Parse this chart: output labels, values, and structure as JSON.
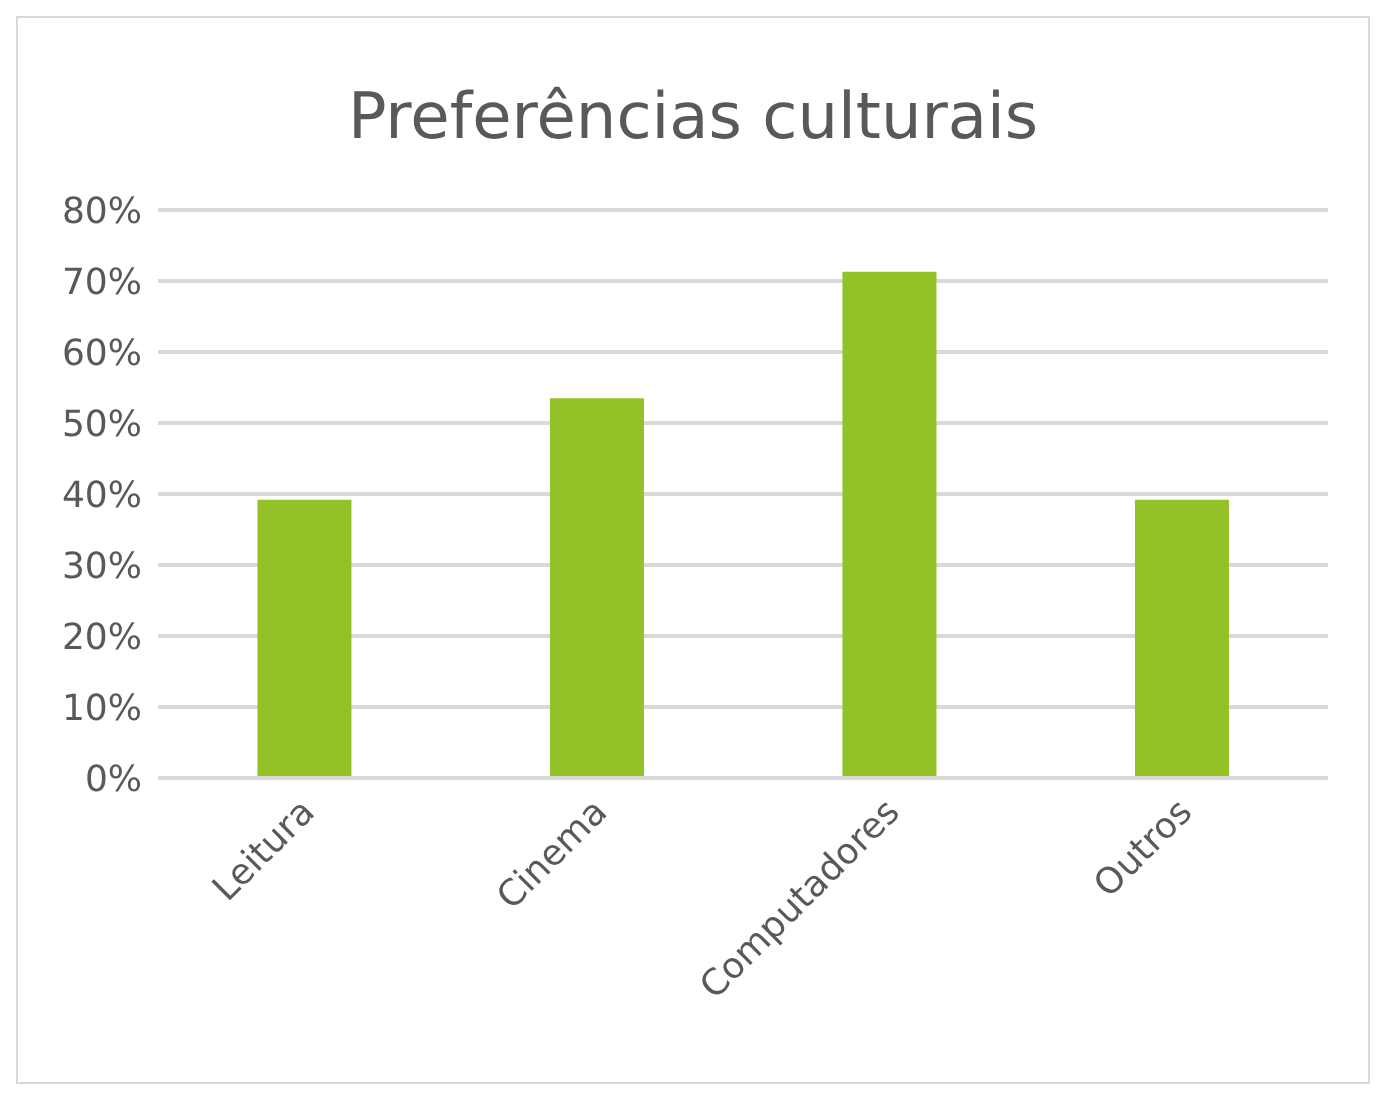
{
  "chart_data": {
    "type": "bar",
    "title": "Preferências culturais",
    "categories": [
      "Leitura",
      "Cinema",
      "Computadores",
      "Outros"
    ],
    "values": [
      39.2,
      53.5,
      71.3,
      39.2
    ],
    "color": "#92c225",
    "ylim": [
      0,
      80
    ],
    "yticks": [
      {
        "value": 0,
        "label": "0%"
      },
      {
        "value": 10,
        "label": "10%"
      },
      {
        "value": 20,
        "label": "20%"
      },
      {
        "value": 30,
        "label": "30%"
      },
      {
        "value": 40,
        "label": "40%"
      },
      {
        "value": 50,
        "label": "50%"
      },
      {
        "value": 60,
        "label": "60%"
      },
      {
        "value": 70,
        "label": "70%"
      },
      {
        "value": 80,
        "label": "80%"
      }
    ],
    "grid": "y",
    "legend": false
  }
}
